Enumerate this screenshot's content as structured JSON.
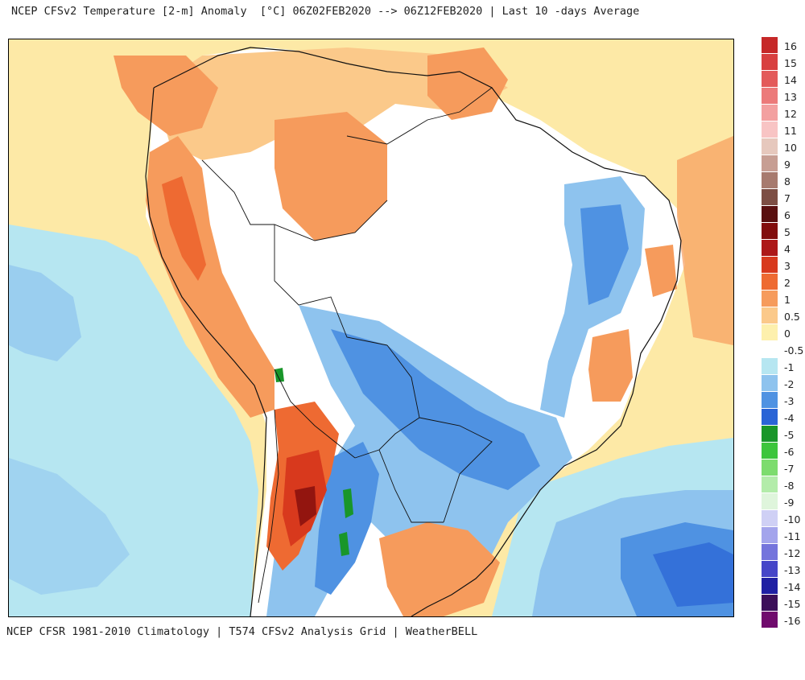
{
  "title": "NCEP CFSv2 Temperature [2-m] Anomaly  [°C] 06Z02FEB2020 --> 06Z12FEB2020 | Last 10 -days Average",
  "footer": "NCEP CFSR 1981-2010 Climatology | T574 CFSv2 Analysis Grid | WeatherBELL",
  "legend": {
    "items": [
      {
        "label": "16",
        "color": "#c62828"
      },
      {
        "label": "15",
        "color": "#d84040"
      },
      {
        "label": "14",
        "color": "#e35a5a"
      },
      {
        "label": "13",
        "color": "#ec7a7a"
      },
      {
        "label": "12",
        "color": "#f3a0a0"
      },
      {
        "label": "11",
        "color": "#f8c4c4"
      },
      {
        "label": "10",
        "color": "#e6c8bd"
      },
      {
        "label": "9",
        "color": "#c79e93"
      },
      {
        "label": "8",
        "color": "#a77a6e"
      },
      {
        "label": "7",
        "color": "#7d4e44"
      },
      {
        "label": "6",
        "color": "#5a1010"
      },
      {
        "label": "5",
        "color": "#820d0d"
      },
      {
        "label": "4",
        "color": "#ad1818"
      },
      {
        "label": "3",
        "color": "#d8391d"
      },
      {
        "label": "2",
        "color": "#ee6a32"
      },
      {
        "label": "1",
        "color": "#f69b5c"
      },
      {
        "label": "0.5",
        "color": "#fbc98a"
      },
      {
        "label": "0",
        "color": "#fdf0ad"
      },
      {
        "label": "-0.5",
        "color": "#ffffff"
      },
      {
        "label": "-1",
        "color": "#b6e6f1"
      },
      {
        "label": "-2",
        "color": "#8ec3ee"
      },
      {
        "label": "-3",
        "color": "#4f92e2"
      },
      {
        "label": "-4",
        "color": "#2a64d6"
      },
      {
        "label": "-5",
        "color": "#19962a"
      },
      {
        "label": "-6",
        "color": "#3cc53c"
      },
      {
        "label": "-7",
        "color": "#7ddc6e"
      },
      {
        "label": "-8",
        "color": "#b3ecaa"
      },
      {
        "label": "-9",
        "color": "#dff5dc"
      },
      {
        "label": "-10",
        "color": "#cfd0f5"
      },
      {
        "label": "-11",
        "color": "#a3a4ec"
      },
      {
        "label": "-12",
        "color": "#7474dc"
      },
      {
        "label": "-13",
        "color": "#4545c8"
      },
      {
        "label": "-14",
        "color": "#1f1fa3"
      },
      {
        "label": "-15",
        "color": "#3c0f5a"
      },
      {
        "label": "-16",
        "color": "#700b6d"
      }
    ],
    "extra_colors": [
      "#a0148f",
      "#cc1fb0",
      "#e84bd0",
      "#f57fe0"
    ]
  },
  "map_colors": {
    "ocean_warm": "#fde9a6",
    "ocean_cool": "#b6e6f1",
    "neutral": "#ffffff",
    "light_warm": "#fbc98a",
    "warm": "#f69b5c",
    "hot": "#ee6a32",
    "hotter": "#d8391d",
    "hottest": "#820d0d",
    "cool": "#8ec3ee",
    "cold": "#4f92e2",
    "colder": "#2a64d6",
    "green": "#19962a",
    "coast": "#111111",
    "lake": "#a0a0a0"
  }
}
